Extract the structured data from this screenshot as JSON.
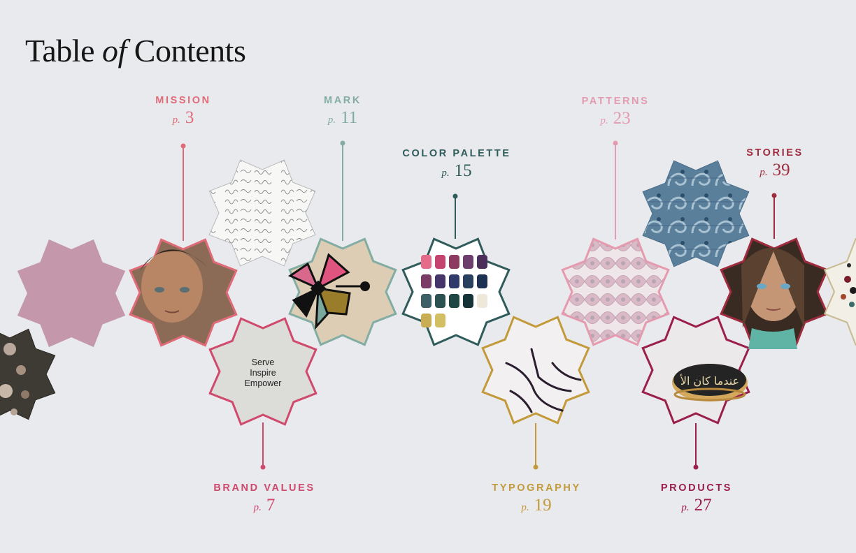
{
  "title": {
    "main": "Table",
    "of": "of",
    "rest": "Contents"
  },
  "page_prefix": "p.",
  "sections": [
    {
      "key": "mission",
      "name": "MISSION",
      "page": "3",
      "color": "#e06b78"
    },
    {
      "key": "mark",
      "name": "MARK",
      "page": "11",
      "color": "#83ada3"
    },
    {
      "key": "color_palette",
      "name": "COLOR PALETTE",
      "page": "15",
      "color": "#2f5c5a"
    },
    {
      "key": "patterns",
      "name": "PATTERNS",
      "page": "23",
      "color": "#e49aaf"
    },
    {
      "key": "stories",
      "name": "STORIES",
      "page": "39",
      "color": "#9e2b3e"
    },
    {
      "key": "brand_values",
      "name": "BRAND VALUES",
      "page": "7",
      "color": "#cf4a6c"
    },
    {
      "key": "typography",
      "name": "TYPOGRAPHY",
      "page": "19",
      "color": "#c29a39"
    },
    {
      "key": "products",
      "name": "PRODUCTS",
      "page": "27",
      "color": "#9b1f4b"
    }
  ],
  "values_card": {
    "lines": [
      "Serve",
      "Inspire",
      "Empower"
    ]
  },
  "icons": {
    "mission": "boy-portrait-photo",
    "mark": "star-flower-logo-icon",
    "color_palette": "color-swatches-icon",
    "patterns": "arabesque-tile-pattern",
    "stories": "girl-portrait-photo",
    "brand_values": "brand-values-card",
    "typography": "arabic-calligraphy",
    "products": "calligraphy-ring-photo",
    "handwriting": "handwritten-letter-texture",
    "blue_tile": "blue-damask-tile",
    "pink_velvet": "pink-velvet-texture",
    "flowers": "dried-flowers-photo",
    "mosaic": "mosaic-tile-fragment"
  },
  "palette_swatches": [
    "#e56b8b",
    "#c4446f",
    "#8c3a5f",
    "#6d3e6e",
    "#4b2f5a",
    "#7a3b66",
    "#46356b",
    "#2f3a6b",
    "#27415e",
    "#1d3152",
    "#3d6066",
    "#2b5250",
    "#1e4642",
    "#17333a",
    "#ede8da",
    "#c9ad52",
    "#d2bf64"
  ]
}
